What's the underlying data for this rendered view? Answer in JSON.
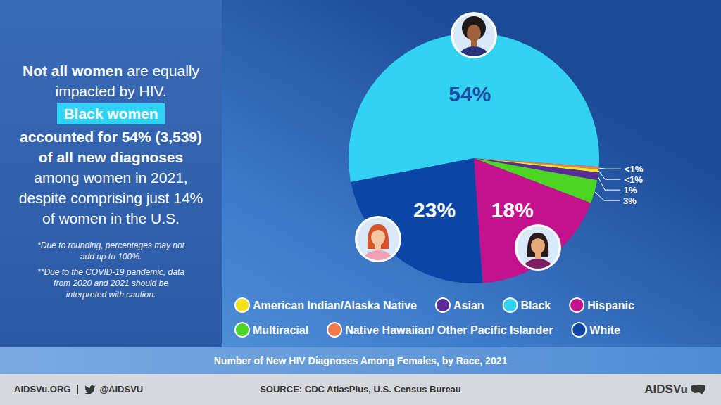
{
  "panel": {
    "headline": [
      {
        "text": "Not all women",
        "style": "bold"
      },
      {
        "text": " are equally impacted by HIV.",
        "style": "regular"
      },
      {
        "text": "Black women",
        "style": "highlight"
      },
      {
        "text": "accounted for 54% (3,539) of all new diagnoses",
        "style": "bold"
      },
      {
        "text": " among women in 2021, despite comprising just 14% of women in the U.S.",
        "style": "regular"
      }
    ],
    "notes": [
      "*Due to rounding, percentages may not add up to 100%.",
      "**Due to the COVID-19 pandemic, data from 2020 and 2021 should be interpreted with caution."
    ]
  },
  "chart_data": {
    "type": "pie",
    "title": "Number of New HIV Diagnoses Among Females, by Race, 2021",
    "categories": [
      "Black",
      "Native Hawaiian/ Other Pacific Islander",
      "American Indian/Alaska Native",
      "Asian",
      "Multiracial",
      "Hispanic",
      "White"
    ],
    "values": [
      54,
      0.3,
      0.4,
      1,
      3,
      18,
      23
    ],
    "value_labels": [
      "54%",
      "<1%",
      "<1%",
      "1%",
      "3%",
      "18%",
      "23%"
    ],
    "colors": [
      "#32d2f3",
      "#f47a4c",
      "#f3e21c",
      "#5a2b98",
      "#4cd623",
      "#c4118c",
      "#0b45a6"
    ],
    "data_labels": true,
    "legend": "bottom"
  },
  "footer": {
    "site": "AIDSVu.ORG",
    "handle": "@AIDSVU",
    "source": "SOURCE: CDC AtlasPlus, U.S. Census Bureau",
    "logo": "AIDSVu"
  }
}
